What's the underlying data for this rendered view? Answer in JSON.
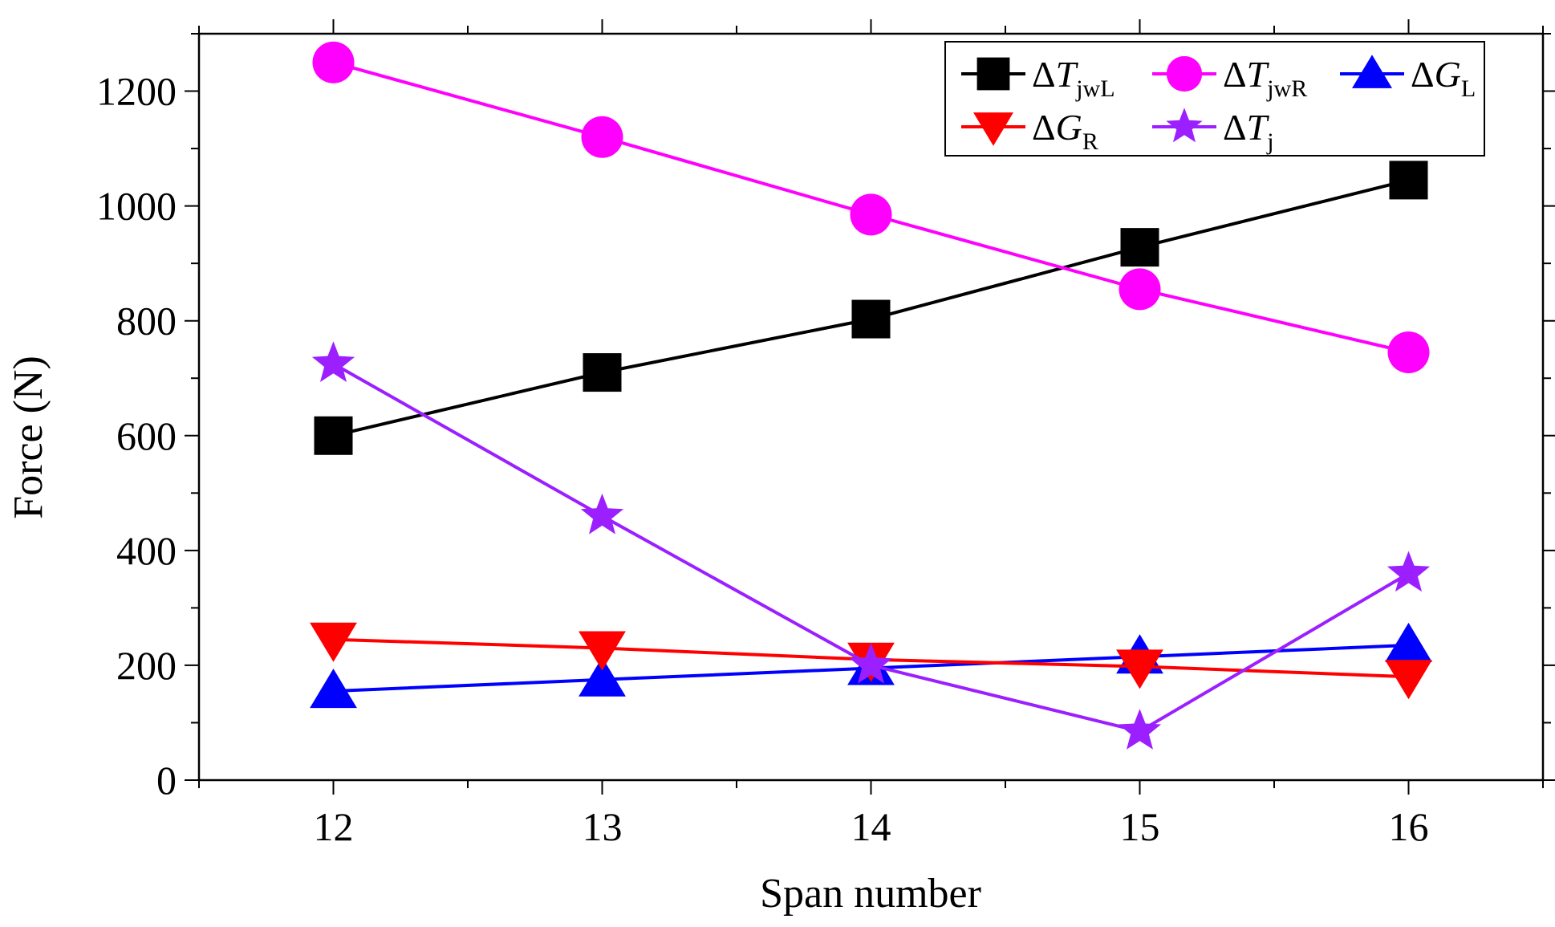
{
  "chart_data": {
    "type": "line",
    "title": "",
    "xlabel": "Span number",
    "ylabel": "Force (N)",
    "xlim": [
      11.5,
      16.5
    ],
    "ylim": [
      0,
      1300
    ],
    "x": [
      12,
      13,
      14,
      15,
      16
    ],
    "x_ticks": [
      "12",
      "13",
      "14",
      "15",
      "16"
    ],
    "y_ticks": [
      "0",
      "200",
      "400",
      "600",
      "800",
      "1000",
      "1200"
    ],
    "y_tick_values": [
      0,
      200,
      400,
      600,
      800,
      1000,
      1200
    ],
    "legend_position": "top-right",
    "series": [
      {
        "name": "ΔTjwL",
        "base": "ΔT",
        "sub": "jwL",
        "color": "#000000",
        "marker": "square",
        "values": [
          600,
          710,
          803,
          928,
          1045
        ]
      },
      {
        "name": "ΔTjwR",
        "base": "ΔT",
        "sub": "jwR",
        "color": "#ff00ff",
        "marker": "circle",
        "values": [
          1250,
          1120,
          985,
          855,
          745
        ]
      },
      {
        "name": "ΔGL",
        "base": "ΔG",
        "sub": "L",
        "color": "#0000ff",
        "marker": "triangle-up",
        "values": [
          155,
          175,
          195,
          215,
          235
        ]
      },
      {
        "name": "ΔGR",
        "base": "ΔG",
        "sub": "R",
        "color": "#ff0000",
        "marker": "triangle-down",
        "values": [
          245,
          230,
          210,
          198,
          180
        ]
      },
      {
        "name": "ΔTj",
        "base": "ΔT",
        "sub": "j",
        "color": "#9b1fff",
        "marker": "star",
        "values": [
          725,
          460,
          200,
          85,
          360
        ]
      }
    ]
  }
}
